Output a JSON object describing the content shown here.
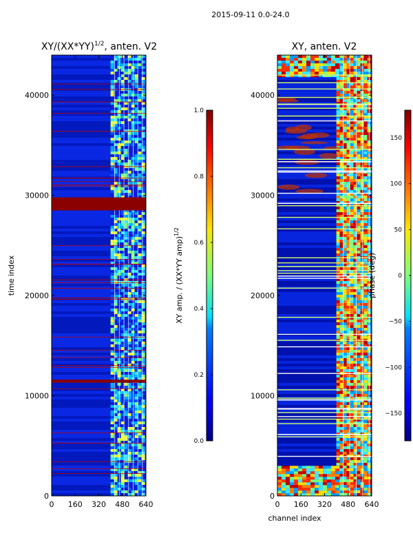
{
  "figure": {
    "suptitle": "2015-09-11 0.0-24.0"
  },
  "chart_data": [
    {
      "type": "heatmap",
      "title": "XY/(XX*YY)^{1/2}, anten. V2",
      "title_base": "XY/(XX*YY)",
      "title_sup": "1/2",
      "title_tail": ", anten. V2",
      "xlabel": "",
      "ylabel": "time index",
      "xlim": [
        0,
        640
      ],
      "ylim": [
        0,
        44000
      ],
      "xticks": [
        0,
        160,
        320,
        480,
        640
      ],
      "yticks": [
        0,
        10000,
        20000,
        30000,
        40000
      ],
      "colorbar": {
        "label": "XY amp. / (XX*YY amp)^{1/2}",
        "label_base": "XY amp. / (XX*YY amp)",
        "label_sup": "1/2",
        "range": [
          0.0,
          1.0
        ],
        "ticks": [
          0.0,
          0.2,
          0.4,
          0.6,
          0.8,
          1.0
        ],
        "tick_labels": [
          "0.0",
          "0.2",
          "0.4",
          "0.6",
          "0.8",
          "1.0"
        ]
      },
      "colormap": "jet",
      "active_band_channels": [
        400,
        620
      ],
      "saturated_rows": [
        [
          28500,
          29800
        ],
        [
          11300,
          11600
        ]
      ]
    },
    {
      "type": "heatmap",
      "title": "XY, anten. V2",
      "xlabel": "channel index",
      "ylabel": "",
      "xlim": [
        0,
        640
      ],
      "ylim": [
        0,
        44000
      ],
      "xticks": [
        0,
        160,
        320,
        480,
        640
      ],
      "yticks": [
        0,
        10000,
        20000,
        30000,
        40000
      ],
      "colorbar": {
        "label": "phase (deg)",
        "range": [
          -180,
          180
        ],
        "ticks": [
          -150,
          -100,
          -50,
          0,
          50,
          100,
          150
        ],
        "tick_labels": [
          "−150",
          "−100",
          "−50",
          "0",
          "50",
          "100",
          "150"
        ]
      },
      "colormap": "jet",
      "active_band_channels": [
        400,
        620
      ],
      "active_time_rows": [
        [
          0,
          3000
        ],
        [
          42000,
          44000
        ]
      ]
    }
  ]
}
